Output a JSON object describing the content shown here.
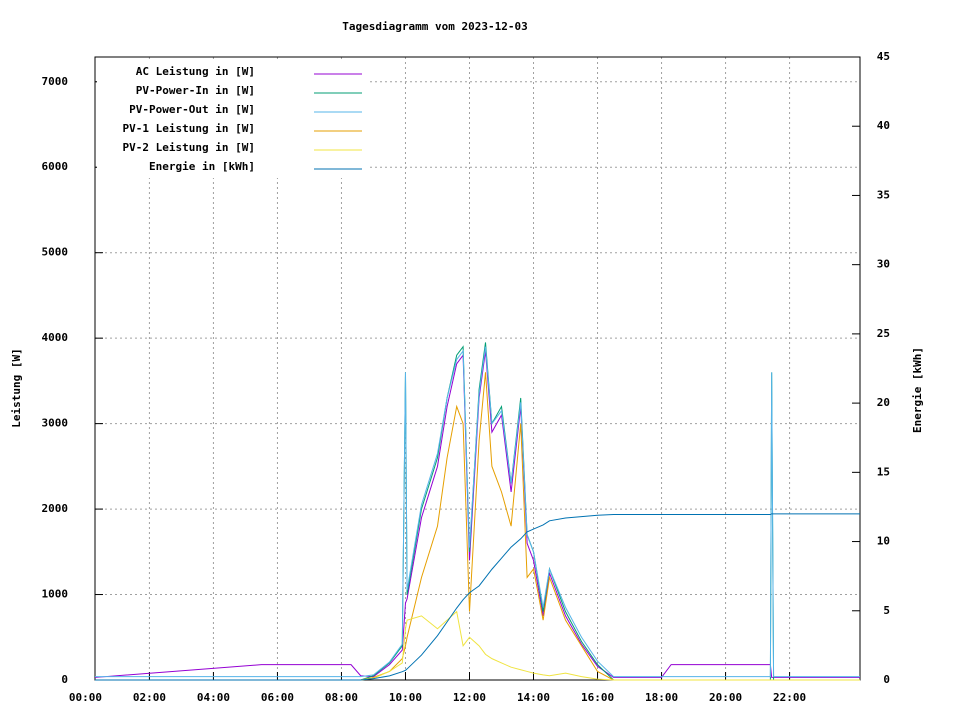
{
  "chart_data": {
    "type": "line",
    "title": "Tagesdiagramm vom 2023-12-03",
    "y_label": "Leistung [W]",
    "y2_label": "Energie [kWh]",
    "x": [
      0.3,
      5.5,
      8.3,
      8.6,
      9.0,
      9.5,
      9.9,
      10.0,
      10.05,
      10.5,
      11.0,
      11.3,
      11.6,
      11.8,
      12.0,
      12.3,
      12.5,
      12.7,
      13.0,
      13.3,
      13.6,
      13.8,
      14.0,
      14.3,
      14.5,
      15.0,
      15.5,
      16.0,
      16.5,
      18.0,
      18.3,
      21.4,
      21.44,
      21.5,
      24.2
    ],
    "series": [
      {
        "name": "AC Leistung in [W]",
        "color": "#9400d3",
        "values": [
          30,
          180,
          180,
          50,
          40,
          180,
          350,
          900,
          950,
          1900,
          2500,
          3200,
          3700,
          3800,
          1400,
          3300,
          3850,
          2900,
          3100,
          2200,
          3200,
          1600,
          1400,
          750,
          1250,
          750,
          420,
          160,
          30,
          30,
          180,
          180,
          30,
          30,
          30
        ]
      },
      {
        "name": "PV-Power-In in [W]",
        "color": "#009e73",
        "values": [
          0,
          0,
          0,
          0,
          50,
          200,
          400,
          3600,
          1000,
          2000,
          2600,
          3300,
          3800,
          3900,
          1500,
          3400,
          3950,
          3000,
          3200,
          2300,
          3300,
          1700,
          1500,
          800,
          1300,
          800,
          450,
          180,
          0,
          0,
          0,
          0,
          3600,
          0,
          0
        ]
      },
      {
        "name": "PV-Power-Out in [W]",
        "color": "#56b4e9",
        "values": [
          40,
          40,
          40,
          40,
          60,
          210,
          420,
          3600,
          1050,
          2050,
          2650,
          3300,
          3750,
          3850,
          1550,
          3350,
          3900,
          3000,
          3150,
          2300,
          3250,
          1700,
          1500,
          850,
          1300,
          850,
          500,
          220,
          40,
          40,
          40,
          40,
          3600,
          40,
          40
        ]
      },
      {
        "name": "PV-1 Leistung in [W]",
        "color": "#e69f00",
        "values": [
          0,
          0,
          0,
          0,
          30,
          100,
          250,
          400,
          500,
          1200,
          1800,
          2600,
          3200,
          3000,
          800,
          2800,
          3600,
          2500,
          2200,
          1800,
          3000,
          1200,
          1300,
          700,
          1200,
          700,
          400,
          100,
          0,
          0,
          0,
          0,
          0,
          0,
          0
        ]
      },
      {
        "name": "PV-2 Leistung in [W]",
        "color": "#f0e442",
        "values": [
          0,
          0,
          0,
          0,
          20,
          100,
          200,
          600,
          700,
          750,
          600,
          700,
          800,
          400,
          500,
          400,
          300,
          250,
          200,
          150,
          120,
          100,
          80,
          60,
          50,
          80,
          40,
          10,
          0,
          0,
          0,
          0,
          0,
          0,
          0
        ]
      },
      {
        "name": "Energie in [kWh]",
        "color": "#0072b2",
        "axis": "y2",
        "values": [
          0,
          0,
          0,
          0,
          0.1,
          0.3,
          0.6,
          0.7,
          0.8,
          1.8,
          3.2,
          4.2,
          5.2,
          5.8,
          6.3,
          6.8,
          7.4,
          8.0,
          8.8,
          9.6,
          10.2,
          10.7,
          10.9,
          11.2,
          11.5,
          11.7,
          11.8,
          11.9,
          11.95,
          11.95,
          11.95,
          11.95,
          12.0,
          12.0,
          12.0
        ]
      }
    ],
    "xlim": [
      0.3,
      24.2
    ],
    "xticks": [
      {
        "value": 0,
        "label": "00:00"
      },
      {
        "value": 2,
        "label": "02:00"
      },
      {
        "value": 4,
        "label": "04:00"
      },
      {
        "value": 6,
        "label": "06:00"
      },
      {
        "value": 8,
        "label": "08:00"
      },
      {
        "value": 10,
        "label": "10:00"
      },
      {
        "value": 12,
        "label": "12:00"
      },
      {
        "value": 14,
        "label": "14:00"
      },
      {
        "value": 16,
        "label": "16:00"
      },
      {
        "value": 18,
        "label": "18:00"
      },
      {
        "value": 20,
        "label": "20:00"
      },
      {
        "value": 22,
        "label": "22:00"
      }
    ],
    "ylim": [
      0,
      7290
    ],
    "yticks": [
      0,
      1000,
      2000,
      3000,
      4000,
      5000,
      6000,
      7000
    ],
    "y2lim": [
      0,
      45
    ],
    "y2ticks": [
      0,
      5,
      10,
      15,
      20,
      25,
      30,
      35,
      40,
      45
    ],
    "grid": true,
    "legend": "top-left"
  }
}
